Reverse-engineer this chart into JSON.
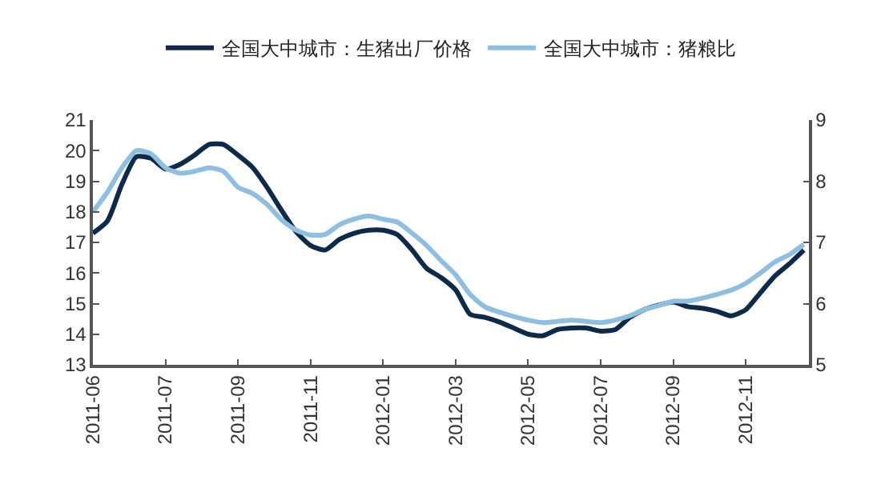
{
  "chart_data": {
    "type": "line",
    "categories": [
      "2011-06",
      null,
      null,
      null,
      null,
      "2011-07",
      null,
      null,
      null,
      null,
      "2011-09",
      null,
      null,
      null,
      null,
      "2011-11",
      null,
      null,
      null,
      null,
      "2012-01",
      null,
      null,
      null,
      null,
      "2012-03",
      null,
      null,
      null,
      null,
      "2012-05",
      null,
      null,
      null,
      null,
      "2012-07",
      null,
      null,
      null,
      null,
      "2012-09",
      null,
      null,
      null,
      null,
      "2012-11",
      null,
      null,
      null,
      null
    ],
    "series": [
      {
        "name": "全国大中城市：生猪出厂价格",
        "color": "#0d2a4a",
        "values": [
          17.3,
          17.7,
          18.9,
          19.8,
          19.75,
          19.4,
          19.55,
          19.85,
          20.2,
          20.2,
          19.85,
          19.45,
          18.8,
          18.05,
          17.35,
          16.9,
          16.75,
          17.1,
          17.3,
          17.4,
          17.4,
          17.25,
          16.75,
          16.15,
          15.85,
          15.45,
          14.65,
          14.55,
          14.4,
          14.2,
          14.0,
          13.95,
          14.15,
          14.2,
          14.2,
          14.1,
          14.15,
          14.55,
          14.8,
          14.95,
          15.05,
          14.9,
          14.85,
          14.75,
          14.6,
          14.8,
          15.35,
          15.9,
          16.3,
          16.75
        ]
      },
      {
        "name": "全国大中城市：猪粮比",
        "color": "#8fbfe0",
        "axis": "y2",
        "values": [
          7.5,
          7.82,
          8.22,
          8.5,
          8.45,
          8.22,
          8.13,
          8.16,
          8.22,
          8.16,
          7.9,
          7.8,
          7.62,
          7.37,
          7.2,
          7.12,
          7.13,
          7.29,
          7.38,
          7.43,
          7.38,
          7.33,
          7.15,
          6.95,
          6.7,
          6.47,
          6.15,
          5.95,
          5.86,
          5.79,
          5.73,
          5.69,
          5.71,
          5.73,
          5.71,
          5.69,
          5.73,
          5.8,
          5.9,
          5.97,
          6.04,
          6.04,
          6.09,
          6.15,
          6.22,
          6.33,
          6.5,
          6.68,
          6.8,
          6.97
        ]
      }
    ],
    "ylim": [
      13,
      21
    ],
    "yticks": [
      13,
      14,
      15,
      16,
      17,
      18,
      19,
      20,
      21
    ],
    "y2lim": [
      5,
      9
    ],
    "y2ticks": [
      5,
      6,
      7,
      8,
      9
    ],
    "grid": false,
    "legend": "top",
    "marker": "none",
    "line_style": "solid"
  }
}
